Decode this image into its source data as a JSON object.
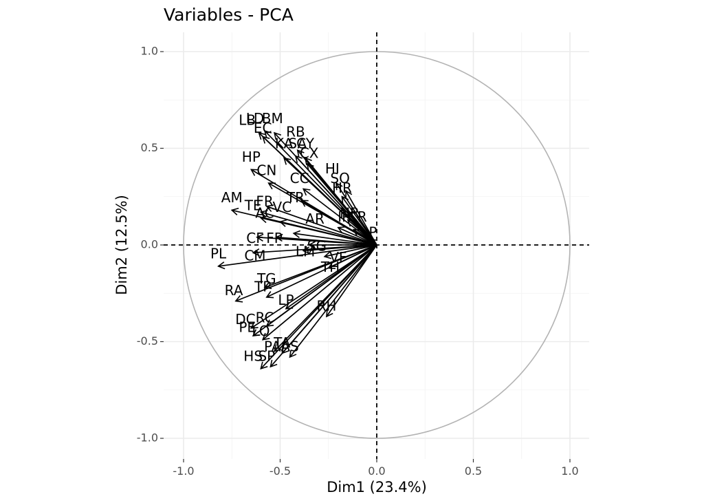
{
  "chart_data": {
    "type": "scatter",
    "subtype": "pca-correlation-circle",
    "title": "Variables - PCA",
    "xlabel": "Dim1 (23.4%)",
    "ylabel": "Dim2 (12.5%)",
    "xlim": [
      -1.0,
      1.0
    ],
    "ylim": [
      -1.0,
      1.0
    ],
    "x_ticks": [
      "-1.0",
      "-0.5",
      "0.0",
      "0.5",
      "1.0"
    ],
    "y_ticks": [
      "1.0",
      "0.5",
      "0.0",
      "-0.5",
      "-1.0"
    ],
    "x_tick_values": [
      -1.0,
      -0.5,
      0.0,
      0.5,
      1.0
    ],
    "y_tick_values": [
      1.0,
      0.5,
      0.0,
      -0.5,
      -1.0
    ],
    "grid": true,
    "unit_circle": true,
    "variables": [
      {
        "name": "LB",
        "x": -0.61,
        "y": 0.58
      },
      {
        "name": "LD",
        "x": -0.58,
        "y": 0.59
      },
      {
        "name": "BM",
        "x": -0.53,
        "y": 0.58
      },
      {
        "name": "EC",
        "x": -0.59,
        "y": 0.56
      },
      {
        "name": "RB",
        "x": -0.41,
        "y": 0.49
      },
      {
        "name": "KA",
        "x": -0.48,
        "y": 0.45
      },
      {
        "name": "SA",
        "x": -0.42,
        "y": 0.46
      },
      {
        "name": "CY",
        "x": -0.37,
        "y": 0.45
      },
      {
        "name": "CX",
        "x": -0.36,
        "y": 0.42
      },
      {
        "name": "HP",
        "x": -0.65,
        "y": 0.39
      },
      {
        "name": "CN",
        "x": -0.56,
        "y": 0.32
      },
      {
        "name": "HI",
        "x": -0.21,
        "y": 0.32
      },
      {
        "name": "CC",
        "x": -0.38,
        "y": 0.29
      },
      {
        "name": "SO",
        "x": -0.16,
        "y": 0.28
      },
      {
        "name": "HR",
        "x": -0.18,
        "y": 0.25
      },
      {
        "name": "TR",
        "x": -0.39,
        "y": 0.23
      },
      {
        "name": "AM",
        "x": -0.75,
        "y": 0.18
      },
      {
        "name": "TE",
        "x": -0.6,
        "y": 0.17
      },
      {
        "name": "FR",
        "x": -0.57,
        "y": 0.2
      },
      {
        "name": "AC",
        "x": -0.6,
        "y": 0.14
      },
      {
        "name": "VC",
        "x": -0.5,
        "y": 0.12
      },
      {
        "name": "AR",
        "x": -0.43,
        "y": 0.06
      },
      {
        "name": "IP",
        "x": -0.2,
        "y": 0.09
      },
      {
        "name": "CR",
        "x": -0.12,
        "y": 0.08
      },
      {
        "name": "NR",
        "x": -0.15,
        "y": 0.13
      },
      {
        "name": "CF",
        "x": -0.62,
        "y": 0.04
      },
      {
        "name": "FP",
        "x": -0.52,
        "y": 0.04
      },
      {
        "name": "P",
        "x": -0.04,
        "y": 0.03
      },
      {
        "name": "SG",
        "x": -0.35,
        "y": 0.0
      },
      {
        "name": "LM",
        "x": -0.38,
        "y": -0.03
      },
      {
        "name": "CM",
        "x": -0.64,
        "y": -0.04
      },
      {
        "name": "PL",
        "x": -0.82,
        "y": -0.11
      },
      {
        "name": "VF",
        "x": -0.27,
        "y": -0.06
      },
      {
        "name": "TH",
        "x": -0.25,
        "y": -0.12
      },
      {
        "name": "RA",
        "x": -0.73,
        "y": -0.29
      },
      {
        "name": "TG",
        "x": -0.58,
        "y": -0.22
      },
      {
        "name": "TP",
        "x": -0.57,
        "y": -0.27
      },
      {
        "name": "LP",
        "x": -0.47,
        "y": -0.33
      },
      {
        "name": "RH",
        "x": -0.26,
        "y": -0.37
      },
      {
        "name": "DC",
        "x": -0.65,
        "y": -0.43
      },
      {
        "name": "RC",
        "x": -0.57,
        "y": -0.42
      },
      {
        "name": "PE",
        "x": -0.64,
        "y": -0.47
      },
      {
        "name": "LO",
        "x": -0.59,
        "y": -0.49
      },
      {
        "name": "PA",
        "x": -0.53,
        "y": -0.55
      },
      {
        "name": "TA",
        "x": -0.49,
        "y": -0.56
      },
      {
        "name": "AS",
        "x": -0.45,
        "y": -0.58
      },
      {
        "name": "HS",
        "x": -0.6,
        "y": -0.64
      },
      {
        "name": "SP",
        "x": -0.55,
        "y": -0.63
      }
    ],
    "labels_drawn": [
      {
        "text": "LB",
        "x": -0.67,
        "y": 0.64
      },
      {
        "text": "LD",
        "x": -0.63,
        "y": 0.65
      },
      {
        "text": "BM",
        "x": -0.54,
        "y": 0.65
      },
      {
        "text": "EC",
        "x": -0.59,
        "y": 0.6
      },
      {
        "text": "RB",
        "x": -0.42,
        "y": 0.58
      },
      {
        "text": "KA",
        "x": -0.48,
        "y": 0.52
      },
      {
        "text": "SA",
        "x": -0.41,
        "y": 0.52
      },
      {
        "text": "CY",
        "x": -0.37,
        "y": 0.52
      },
      {
        "text": "CX",
        "x": -0.35,
        "y": 0.47
      },
      {
        "text": "HP",
        "x": -0.65,
        "y": 0.45
      },
      {
        "text": "CN",
        "x": -0.57,
        "y": 0.38
      },
      {
        "text": "HI",
        "x": -0.23,
        "y": 0.39
      },
      {
        "text": "CC",
        "x": -0.4,
        "y": 0.34
      },
      {
        "text": "SO",
        "x": -0.19,
        "y": 0.34
      },
      {
        "text": "HR",
        "x": -0.18,
        "y": 0.29
      },
      {
        "text": "TR",
        "x": -0.42,
        "y": 0.24
      },
      {
        "text": "AM",
        "x": -0.75,
        "y": 0.24
      },
      {
        "text": "TE",
        "x": -0.64,
        "y": 0.2
      },
      {
        "text": "FR",
        "x": -0.58,
        "y": 0.22
      },
      {
        "text": "AC",
        "x": -0.58,
        "y": 0.16
      },
      {
        "text": "VC",
        "x": -0.49,
        "y": 0.19
      },
      {
        "text": "AR",
        "x": -0.32,
        "y": 0.13
      },
      {
        "text": "IP",
        "x": -0.17,
        "y": 0.14
      },
      {
        "text": "CR",
        "x": -0.1,
        "y": 0.14
      },
      {
        "text": "NR",
        "x": -0.14,
        "y": 0.16
      },
      {
        "text": "CF",
        "x": -0.63,
        "y": 0.03
      },
      {
        "text": "FP",
        "x": -0.53,
        "y": 0.03
      },
      {
        "text": "P",
        "x": -0.02,
        "y": 0.06
      },
      {
        "text": "SG",
        "x": -0.31,
        "y": -0.01
      },
      {
        "text": "LM",
        "x": -0.37,
        "y": -0.04
      },
      {
        "text": "CM",
        "x": -0.63,
        "y": -0.06
      },
      {
        "text": "PL",
        "x": -0.82,
        "y": -0.05
      },
      {
        "text": "VF",
        "x": -0.2,
        "y": -0.07
      },
      {
        "text": "TH",
        "x": -0.24,
        "y": -0.12
      },
      {
        "text": "RA",
        "x": -0.74,
        "y": -0.24
      },
      {
        "text": "TG",
        "x": -0.57,
        "y": -0.18
      },
      {
        "text": "TP",
        "x": -0.59,
        "y": -0.22
      },
      {
        "text": "LP",
        "x": -0.47,
        "y": -0.29
      },
      {
        "text": "RH",
        "x": -0.26,
        "y": -0.32
      },
      {
        "text": "DC",
        "x": -0.68,
        "y": -0.39
      },
      {
        "text": "RC",
        "x": -0.58,
        "y": -0.38
      },
      {
        "text": "PE",
        "x": -0.67,
        "y": -0.43
      },
      {
        "text": "LO",
        "x": -0.6,
        "y": -0.45
      },
      {
        "text": "PA",
        "x": -0.54,
        "y": -0.53
      },
      {
        "text": "TA",
        "x": -0.49,
        "y": -0.51
      },
      {
        "text": "AS",
        "x": -0.45,
        "y": -0.53
      },
      {
        "text": "HS",
        "x": -0.64,
        "y": -0.58
      },
      {
        "text": "SP",
        "x": -0.57,
        "y": -0.58
      }
    ],
    "colors": {
      "grid": "#ebebeb",
      "circle": "#b3b3b3",
      "arrow": "#000000",
      "zero_line": "#000000",
      "tick_label": "#4d4d4d"
    }
  }
}
